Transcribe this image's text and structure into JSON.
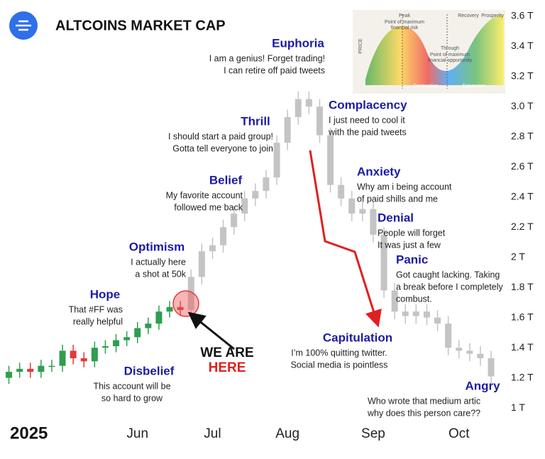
{
  "chart_data": {
    "type": "candlestick",
    "title": "ALTCOINS MARKET CAP",
    "year_label": "2025",
    "categories": [
      null,
      null,
      null,
      null,
      null,
      null,
      null,
      null,
      null,
      null,
      null,
      null,
      "Jun",
      null,
      null,
      null,
      null,
      null,
      null,
      "Jul",
      null,
      null,
      null,
      null,
      null,
      null,
      "Aug",
      null,
      null,
      null,
      null,
      null,
      null,
      null,
      "Sep",
      null,
      null,
      null,
      null,
      null,
      null,
      null,
      "Oct",
      null,
      null,
      null
    ],
    "series": [
      {
        "up_color": "#2e9e4f",
        "down_color": "#e03a3a",
        "open": [
          1.2,
          1.24,
          1.26,
          1.24,
          1.28,
          1.28,
          1.38,
          1.33,
          1.31,
          1.4,
          1.41,
          1.45,
          1.47,
          1.53,
          1.56,
          1.64,
          1.67,
          null,
          null,
          null,
          null,
          null,
          null,
          null,
          null,
          null,
          null,
          null,
          null,
          null,
          null,
          null,
          null,
          null,
          null,
          null,
          null,
          null,
          null,
          null,
          null,
          null,
          null,
          null,
          null,
          null
        ],
        "high": [
          1.28,
          1.3,
          1.3,
          1.32,
          1.32,
          1.42,
          1.42,
          1.37,
          1.44,
          1.45,
          1.49,
          1.51,
          1.57,
          1.6,
          1.68,
          1.71,
          1.71,
          null,
          null,
          null,
          null,
          null,
          null,
          null,
          null,
          null,
          null,
          null,
          null,
          null,
          null,
          null,
          null,
          null,
          null,
          null,
          null,
          null,
          null,
          null,
          null,
          null,
          null,
          null,
          null,
          null
        ],
        "low": [
          1.16,
          1.2,
          1.2,
          1.2,
          1.24,
          1.24,
          1.29,
          1.27,
          1.27,
          1.36,
          1.37,
          1.41,
          1.43,
          1.49,
          1.52,
          1.6,
          1.61,
          null,
          null,
          null,
          null,
          null,
          null,
          null,
          null,
          null,
          null,
          null,
          null,
          null,
          null,
          null,
          null,
          null,
          null,
          null,
          null,
          null,
          null,
          null,
          null,
          null,
          null,
          null,
          null,
          null
        ],
        "close": [
          1.24,
          1.26,
          1.24,
          1.28,
          1.28,
          1.38,
          1.33,
          1.31,
          1.4,
          1.41,
          1.45,
          1.47,
          1.53,
          1.56,
          1.64,
          1.67,
          1.65,
          null,
          null,
          null,
          null,
          null,
          null,
          null,
          null,
          null,
          null,
          null,
          null,
          null,
          null,
          null,
          null,
          null,
          null,
          null,
          null,
          null,
          null,
          null,
          null,
          null,
          null,
          null,
          null,
          null
        ]
      },
      {
        "color": "#c4c4c4",
        "open": [
          null,
          null,
          null,
          null,
          null,
          null,
          null,
          null,
          null,
          null,
          null,
          null,
          null,
          null,
          null,
          null,
          null,
          1.65,
          1.87,
          2.04,
          2.08,
          2.2,
          2.29,
          2.39,
          2.44,
          2.53,
          2.76,
          2.93,
          3.05,
          3.0,
          2.81,
          2.48,
          2.39,
          2.29,
          2.32,
          2.15,
          1.78,
          1.64,
          1.61,
          1.64,
          1.6,
          1.56,
          1.4,
          1.38,
          1.36,
          1.33
        ],
        "high": [
          null,
          null,
          null,
          null,
          null,
          null,
          null,
          null,
          null,
          null,
          null,
          null,
          null,
          null,
          null,
          null,
          null,
          1.92,
          2.09,
          2.13,
          2.25,
          2.34,
          2.44,
          2.49,
          2.58,
          2.81,
          2.98,
          3.1,
          3.1,
          3.05,
          2.86,
          2.53,
          2.44,
          2.37,
          2.37,
          2.2,
          1.83,
          1.69,
          1.69,
          1.69,
          1.65,
          1.61,
          1.45,
          1.43,
          1.41,
          1.38
        ],
        "low": [
          null,
          null,
          null,
          null,
          null,
          null,
          null,
          null,
          null,
          null,
          null,
          null,
          null,
          null,
          null,
          null,
          null,
          1.6,
          1.82,
          1.99,
          2.03,
          2.15,
          2.24,
          2.34,
          2.39,
          2.48,
          2.71,
          2.88,
          2.95,
          2.76,
          2.43,
          2.34,
          2.24,
          2.24,
          2.1,
          1.73,
          1.59,
          1.56,
          1.56,
          1.55,
          1.51,
          1.35,
          1.33,
          1.31,
          1.28,
          1.16
        ],
        "close": [
          null,
          null,
          null,
          null,
          null,
          null,
          null,
          null,
          null,
          null,
          null,
          null,
          null,
          null,
          null,
          null,
          null,
          1.87,
          2.04,
          2.08,
          2.2,
          2.29,
          2.39,
          2.44,
          2.53,
          2.76,
          2.93,
          3.05,
          3.0,
          2.81,
          2.48,
          2.39,
          2.29,
          2.32,
          2.15,
          1.78,
          1.64,
          1.61,
          1.64,
          1.6,
          1.56,
          1.4,
          1.38,
          1.36,
          1.33,
          1.21
        ]
      }
    ],
    "ylim": [
      0.93,
      3.66
    ],
    "yticks": [
      {
        "value": 1,
        "label": "1 T"
      },
      {
        "value": 1.2,
        "label": "1.2 T"
      },
      {
        "value": 1.4,
        "label": "1.4 T"
      },
      {
        "value": 1.6,
        "label": "1.6 T"
      },
      {
        "value": 1.8,
        "label": "1.8 T"
      },
      {
        "value": 2,
        "label": "2 T"
      },
      {
        "value": 2.2,
        "label": "2.2 T"
      },
      {
        "value": 2.4,
        "label": "2.4 T"
      },
      {
        "value": 2.6,
        "label": "2.6 T"
      },
      {
        "value": 2.8,
        "label": "2.8 T"
      },
      {
        "value": 3,
        "label": "3.0 T"
      },
      {
        "value": 3.2,
        "label": "3.2 T"
      },
      {
        "value": 3.4,
        "label": "3.4 T"
      },
      {
        "value": 3.6,
        "label": "3.6 T"
      }
    ],
    "here_label": [
      "WE ARE",
      "HERE"
    ],
    "annotations": [
      {
        "title": "Disbelief",
        "text": [
          "This account will be",
          "so hard to grow"
        ]
      },
      {
        "title": "Hope",
        "text": [
          "That #FF was",
          "really helpful"
        ]
      },
      {
        "title": "Optimism",
        "text": [
          "I actually here",
          "a shot at 50k"
        ]
      },
      {
        "title": "Belief",
        "text": [
          "My favorite account",
          "followed me back"
        ]
      },
      {
        "title": "Thrill",
        "text": [
          "I should start a paid group!",
          "Gotta tell everyone to join"
        ]
      },
      {
        "title": "Euphoria",
        "text": [
          "I am a genius! Forget trading!",
          "I can retire off paid tweets"
        ]
      },
      {
        "title": "Complacency",
        "text": [
          "I just need to cool it",
          "with the paid tweets"
        ]
      },
      {
        "title": "Anxiety",
        "text": [
          "Why am i being account",
          "of paid shills and me"
        ]
      },
      {
        "title": "Denial",
        "text": [
          "People will forget",
          "It was just a few"
        ]
      },
      {
        "title": "Panic",
        "text": [
          "Got caught lacking. Taking",
          "a break before I completely",
          "combust."
        ]
      },
      {
        "title": "Capitulation",
        "text": [
          "I’m 100% quitting twitter.",
          "Social media is pointless"
        ]
      },
      {
        "title": "Angry",
        "text": [
          "Who wrote that medium artic",
          "why does this person care??"
        ]
      }
    ],
    "inset": {
      "axis": "PRICE",
      "peak": "Peak",
      "peak_note": [
        "Point of maximum",
        "financial risk"
      ],
      "recovery": "Recovery",
      "prosperity": "Prosperity",
      "trough": "Through",
      "trough_note": [
        "Point of maximum",
        "financial opportunity"
      ],
      "contraction": "Contraction",
      "expansion": "Expansion"
    }
  }
}
